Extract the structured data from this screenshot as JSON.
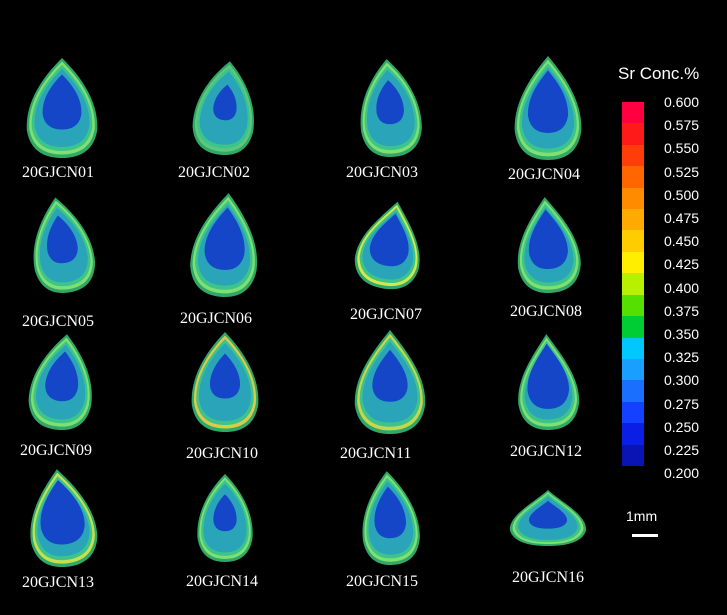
{
  "figure": {
    "samples": [
      {
        "id": "20GJCN01"
      },
      {
        "id": "20GJCN02"
      },
      {
        "id": "20GJCN03"
      },
      {
        "id": "20GJCN04"
      },
      {
        "id": "20GJCN05"
      },
      {
        "id": "20GJCN06"
      },
      {
        "id": "20GJCN07"
      },
      {
        "id": "20GJCN08"
      },
      {
        "id": "20GJCN09"
      },
      {
        "id": "20GJCN10"
      },
      {
        "id": "20GJCN11"
      },
      {
        "id": "20GJCN12"
      },
      {
        "id": "20GJCN13"
      },
      {
        "id": "20GJCN14"
      },
      {
        "id": "20GJCN15"
      },
      {
        "id": "20GJCN16"
      }
    ]
  },
  "legend": {
    "title": "Sr Conc.%",
    "ticks": [
      "0.600",
      "0.575",
      "0.550",
      "0.525",
      "0.500",
      "0.475",
      "0.450",
      "0.425",
      "0.400",
      "0.375",
      "0.350",
      "0.325",
      "0.300",
      "0.275",
      "0.250",
      "0.225",
      "0.200"
    ],
    "colors": [
      "#ff0040",
      "#ff1a1a",
      "#ff3d0a",
      "#ff6600",
      "#ff8c00",
      "#ffaa00",
      "#ffcc00",
      "#ffee00",
      "#b8f000",
      "#55e000",
      "#00cc33",
      "#00c8ff",
      "#1a9fff",
      "#1a6fff",
      "#1440ff",
      "#0a1ee6",
      "#0a14b4"
    ]
  },
  "scale_bar": {
    "label": "1mm"
  }
}
